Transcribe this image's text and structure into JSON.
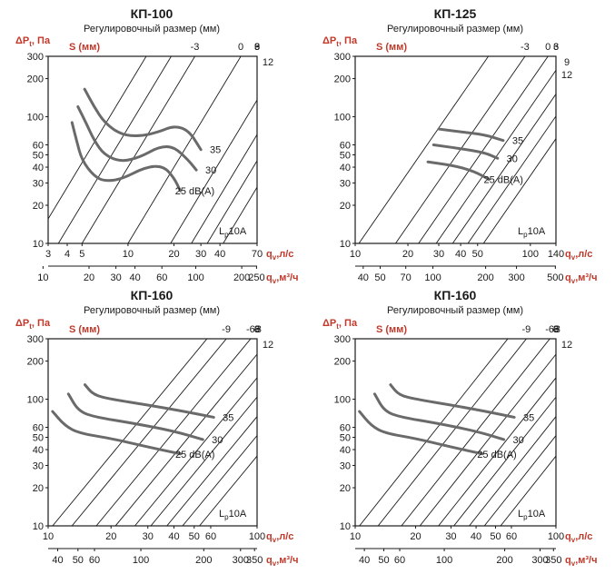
{
  "chart_data": [
    {
      "type": "line",
      "title": "КП-100",
      "subtitle": "Регулировочный размер (мм)",
      "ylabel": "ΔP",
      "ylabel_sub": "t",
      "ylabel_unit": ", Па",
      "y_ticks": [
        300,
        200,
        100,
        60,
        50,
        40,
        30,
        20,
        10
      ],
      "ylim": [
        10,
        300
      ],
      "xlim": [
        3,
        70
      ],
      "x_ticks": [
        3,
        4,
        5,
        10,
        20,
        30,
        40,
        70
      ],
      "x_label": "q",
      "x_label_sub": "v",
      "x_label_unit": ",л/с",
      "x2_ticks": [
        10,
        20,
        30,
        40,
        60,
        100,
        200,
        250
      ],
      "x2_factor": 3.6,
      "x2_label": "q",
      "x2_label_sub": "v",
      "x2_label_unit": ",м³/ч",
      "s_label": "S (мм)",
      "s_ticks": [
        "-3",
        "0",
        "3",
        "6",
        "9"
      ],
      "s_values": [
        -3,
        0,
        3,
        6,
        9
      ],
      "s_extra": [
        {
          "label": "12",
          "value": 12
        }
      ],
      "s_lines": [
        {
          "s": -3,
          "x_at_10": 5.0
        },
        {
          "s": 0,
          "x_at_10": 10.0
        },
        {
          "s": 3,
          "x_at_10": 19.0
        },
        {
          "s": 6,
          "x_at_10": 26.0
        },
        {
          "s": 9,
          "x_at_10": 33.0
        },
        {
          "s": 12,
          "x_at_10": 42.0
        },
        {
          "s": -6,
          "x_at_10": 3.5
        },
        {
          "s": -9,
          "x_at_10": 2.4
        }
      ],
      "s_slope": 2.0,
      "noise": [
        {
          "label": "35",
          "points": [
            [
              5.2,
              165
            ],
            [
              6,
              120
            ],
            [
              7,
              90
            ],
            [
              9,
              72
            ],
            [
              12,
              70
            ],
            [
              16,
              76
            ],
            [
              20,
              85
            ],
            [
              25,
              78
            ],
            [
              30,
              55
            ]
          ]
        },
        {
          "label": "30",
          "points": [
            [
              4.7,
              120
            ],
            [
              5.3,
              90
            ],
            [
              6,
              65
            ],
            [
              7,
              50
            ],
            [
              9,
              44
            ],
            [
              12,
              48
            ],
            [
              16,
              58
            ],
            [
              20,
              58
            ],
            [
              25,
              45
            ],
            [
              28,
              38
            ]
          ]
        },
        {
          "label": "25 dB(A)",
          "points": [
            [
              4.3,
              90
            ],
            [
              4.6,
              65
            ],
            [
              5,
              45
            ],
            [
              6,
              34
            ],
            [
              7,
              31
            ],
            [
              9,
              32
            ],
            [
              13,
              40
            ],
            [
              17,
              41
            ],
            [
              20,
              33
            ],
            [
              22,
              26
            ]
          ]
        }
      ],
      "lp_label": "L",
      "lp_sub": "p",
      "lp_unit": "10A"
    },
    {
      "type": "line",
      "title": "КП-125",
      "subtitle": "Регулировочный размер (мм)",
      "ylabel": "ΔP",
      "ylabel_sub": "t",
      "ylabel_unit": ", Па",
      "y_ticks": [
        300,
        200,
        100,
        60,
        50,
        40,
        30,
        20,
        10
      ],
      "ylim": [
        10,
        300
      ],
      "xlim": [
        10,
        140
      ],
      "x_ticks": [
        10,
        20,
        30,
        40,
        50,
        100,
        140
      ],
      "x_label": "q",
      "x_label_sub": "v",
      "x_label_unit": ",л/с",
      "x2_ticks": [
        40,
        50,
        70,
        100,
        200,
        300,
        500
      ],
      "x2_factor": 3.6,
      "x2_label": "q",
      "x2_label_sub": "v",
      "x2_label_unit": ",м³/ч",
      "s_label": "S (мм)",
      "s_ticks": [
        "-3",
        "0",
        "3",
        "6"
      ],
      "s_values": [
        -3,
        0,
        3,
        6
      ],
      "s_extra": [
        {
          "label": "9",
          "value": 9
        },
        {
          "label": "12",
          "value": 12
        }
      ],
      "s_lines": [
        {
          "s": -6,
          "x_at_10": 10.5
        },
        {
          "s": -3,
          "x_at_10": 17.0
        },
        {
          "s": 0,
          "x_at_10": 23.0
        },
        {
          "s": 3,
          "x_at_10": 29.0
        },
        {
          "s": 6,
          "x_at_10": 36.0
        },
        {
          "s": 9,
          "x_at_10": 44.0
        },
        {
          "s": 12,
          "x_at_10": 54.0
        }
      ],
      "s_slope": 2.0,
      "noise": [
        {
          "label": "35",
          "points": [
            [
              30,
              80
            ],
            [
              40,
              76
            ],
            [
              55,
              72
            ],
            [
              70,
              65
            ]
          ]
        },
        {
          "label": "30",
          "points": [
            [
              28,
              60
            ],
            [
              40,
              56
            ],
            [
              55,
              52
            ],
            [
              65,
              47
            ]
          ]
        },
        {
          "label": "25 dB(A)",
          "points": [
            [
              26,
              44
            ],
            [
              37,
              41
            ],
            [
              48,
              37
            ],
            [
              58,
              32
            ]
          ]
        }
      ],
      "lp_label": "L",
      "lp_sub": "p",
      "lp_unit": "10A"
    },
    {
      "type": "line",
      "title": "КП-160",
      "subtitle": "Регулировочный размер (мм)",
      "ylabel": "ΔP",
      "ylabel_sub": "t",
      "ylabel_unit": ", Па",
      "y_ticks": [
        300,
        200,
        100,
        60,
        50,
        40,
        30,
        20,
        10
      ],
      "ylim": [
        10,
        300
      ],
      "xlim": [
        10,
        100
      ],
      "x_ticks": [
        10,
        20,
        30,
        40,
        50,
        60,
        100
      ],
      "x_label": "q",
      "x_label_sub": "v",
      "x_label_unit": ",л/с",
      "x2_ticks": [
        40,
        50,
        60,
        100,
        200,
        300,
        350
      ],
      "x2_factor": 3.6,
      "x2_label": "q",
      "x2_label_sub": "v",
      "x2_label_unit": ",м³/ч",
      "s_label": "S (мм)",
      "s_ticks": [
        "-9",
        "-6",
        "-3",
        "0",
        "3",
        "6",
        "9"
      ],
      "s_values": [
        -9,
        -6,
        -3,
        0,
        3,
        6,
        9
      ],
      "s_extra": [
        {
          "label": "12",
          "value": 12
        }
      ],
      "s_lines": [
        {
          "s": -12,
          "x_at_10": 10.5
        },
        {
          "s": -9,
          "x_at_10": 13.0
        },
        {
          "s": -6,
          "x_at_10": 17.0
        },
        {
          "s": -3,
          "x_at_10": 21.0
        },
        {
          "s": 0,
          "x_at_10": 26.0
        },
        {
          "s": 3,
          "x_at_10": 31.0
        },
        {
          "s": 6,
          "x_at_10": 37.0
        },
        {
          "s": 9,
          "x_at_10": 44.0
        },
        {
          "s": 12,
          "x_at_10": 53.0
        }
      ],
      "s_slope": 2.0,
      "noise": [
        {
          "label": "35",
          "points": [
            [
              15,
              130
            ],
            [
              16.5,
              108
            ],
            [
              20,
              100
            ],
            [
              30,
              90
            ],
            [
              45,
              80
            ],
            [
              62,
              72
            ]
          ]
        },
        {
          "label": "30",
          "points": [
            [
              12.5,
              110
            ],
            [
              14,
              80
            ],
            [
              17,
              72
            ],
            [
              25,
              65
            ],
            [
              40,
              56
            ],
            [
              55,
              48
            ]
          ]
        },
        {
          "label": "25 dB(A)",
          "points": [
            [
              10.5,
              80
            ],
            [
              12,
              62
            ],
            [
              14,
              54
            ],
            [
              20,
              49
            ],
            [
              30,
              42
            ],
            [
              43,
              37
            ]
          ]
        }
      ],
      "lp_label": "L",
      "lp_sub": "p",
      "lp_unit": "10A"
    },
    {
      "type": "line",
      "title": "КП-160",
      "subtitle": "Регулировочный размер (мм)",
      "ylabel": "ΔP",
      "ylabel_sub": "t",
      "ylabel_unit": ", Па",
      "y_ticks": [
        300,
        200,
        100,
        60,
        50,
        40,
        30,
        20,
        10
      ],
      "ylim": [
        10,
        300
      ],
      "xlim": [
        10,
        100
      ],
      "x_ticks": [
        10,
        20,
        30,
        40,
        50,
        60,
        100
      ],
      "x_label": "q",
      "x_label_sub": "v",
      "x_label_unit": ",л/с",
      "x2_ticks": [
        40,
        50,
        60,
        100,
        200,
        300,
        350
      ],
      "x2_factor": 3.6,
      "x2_label": "q",
      "x2_label_sub": "v",
      "x2_label_unit": ",м³/ч",
      "s_label": "S (мм)",
      "s_ticks": [
        "-9",
        "-6",
        "-3",
        "0",
        "3",
        "6",
        "9"
      ],
      "s_values": [
        -9,
        -6,
        -3,
        0,
        3,
        6,
        9
      ],
      "s_extra": [
        {
          "label": "12",
          "value": 12
        }
      ],
      "s_lines": [
        {
          "s": -12,
          "x_at_10": 10.5
        },
        {
          "s": -9,
          "x_at_10": 13.0
        },
        {
          "s": -6,
          "x_at_10": 17.0
        },
        {
          "s": -3,
          "x_at_10": 21.0
        },
        {
          "s": 0,
          "x_at_10": 26.0
        },
        {
          "s": 3,
          "x_at_10": 31.0
        },
        {
          "s": 6,
          "x_at_10": 37.0
        },
        {
          "s": 9,
          "x_at_10": 44.0
        },
        {
          "s": 12,
          "x_at_10": 53.0
        }
      ],
      "s_slope": 2.0,
      "noise": [
        {
          "label": "35",
          "points": [
            [
              15,
              130
            ],
            [
              16.5,
              108
            ],
            [
              20,
              100
            ],
            [
              30,
              90
            ],
            [
              45,
              80
            ],
            [
              62,
              72
            ]
          ]
        },
        {
          "label": "30",
          "points": [
            [
              12.5,
              110
            ],
            [
              14,
              80
            ],
            [
              17,
              72
            ],
            [
              25,
              65
            ],
            [
              40,
              56
            ],
            [
              55,
              48
            ]
          ]
        },
        {
          "label": "25 dB(A)",
          "points": [
            [
              10.5,
              80
            ],
            [
              12,
              62
            ],
            [
              14,
              54
            ],
            [
              20,
              49
            ],
            [
              30,
              42
            ],
            [
              43,
              37
            ]
          ]
        }
      ],
      "lp_label": "L",
      "lp_sub": "p",
      "lp_unit": "10A"
    }
  ]
}
